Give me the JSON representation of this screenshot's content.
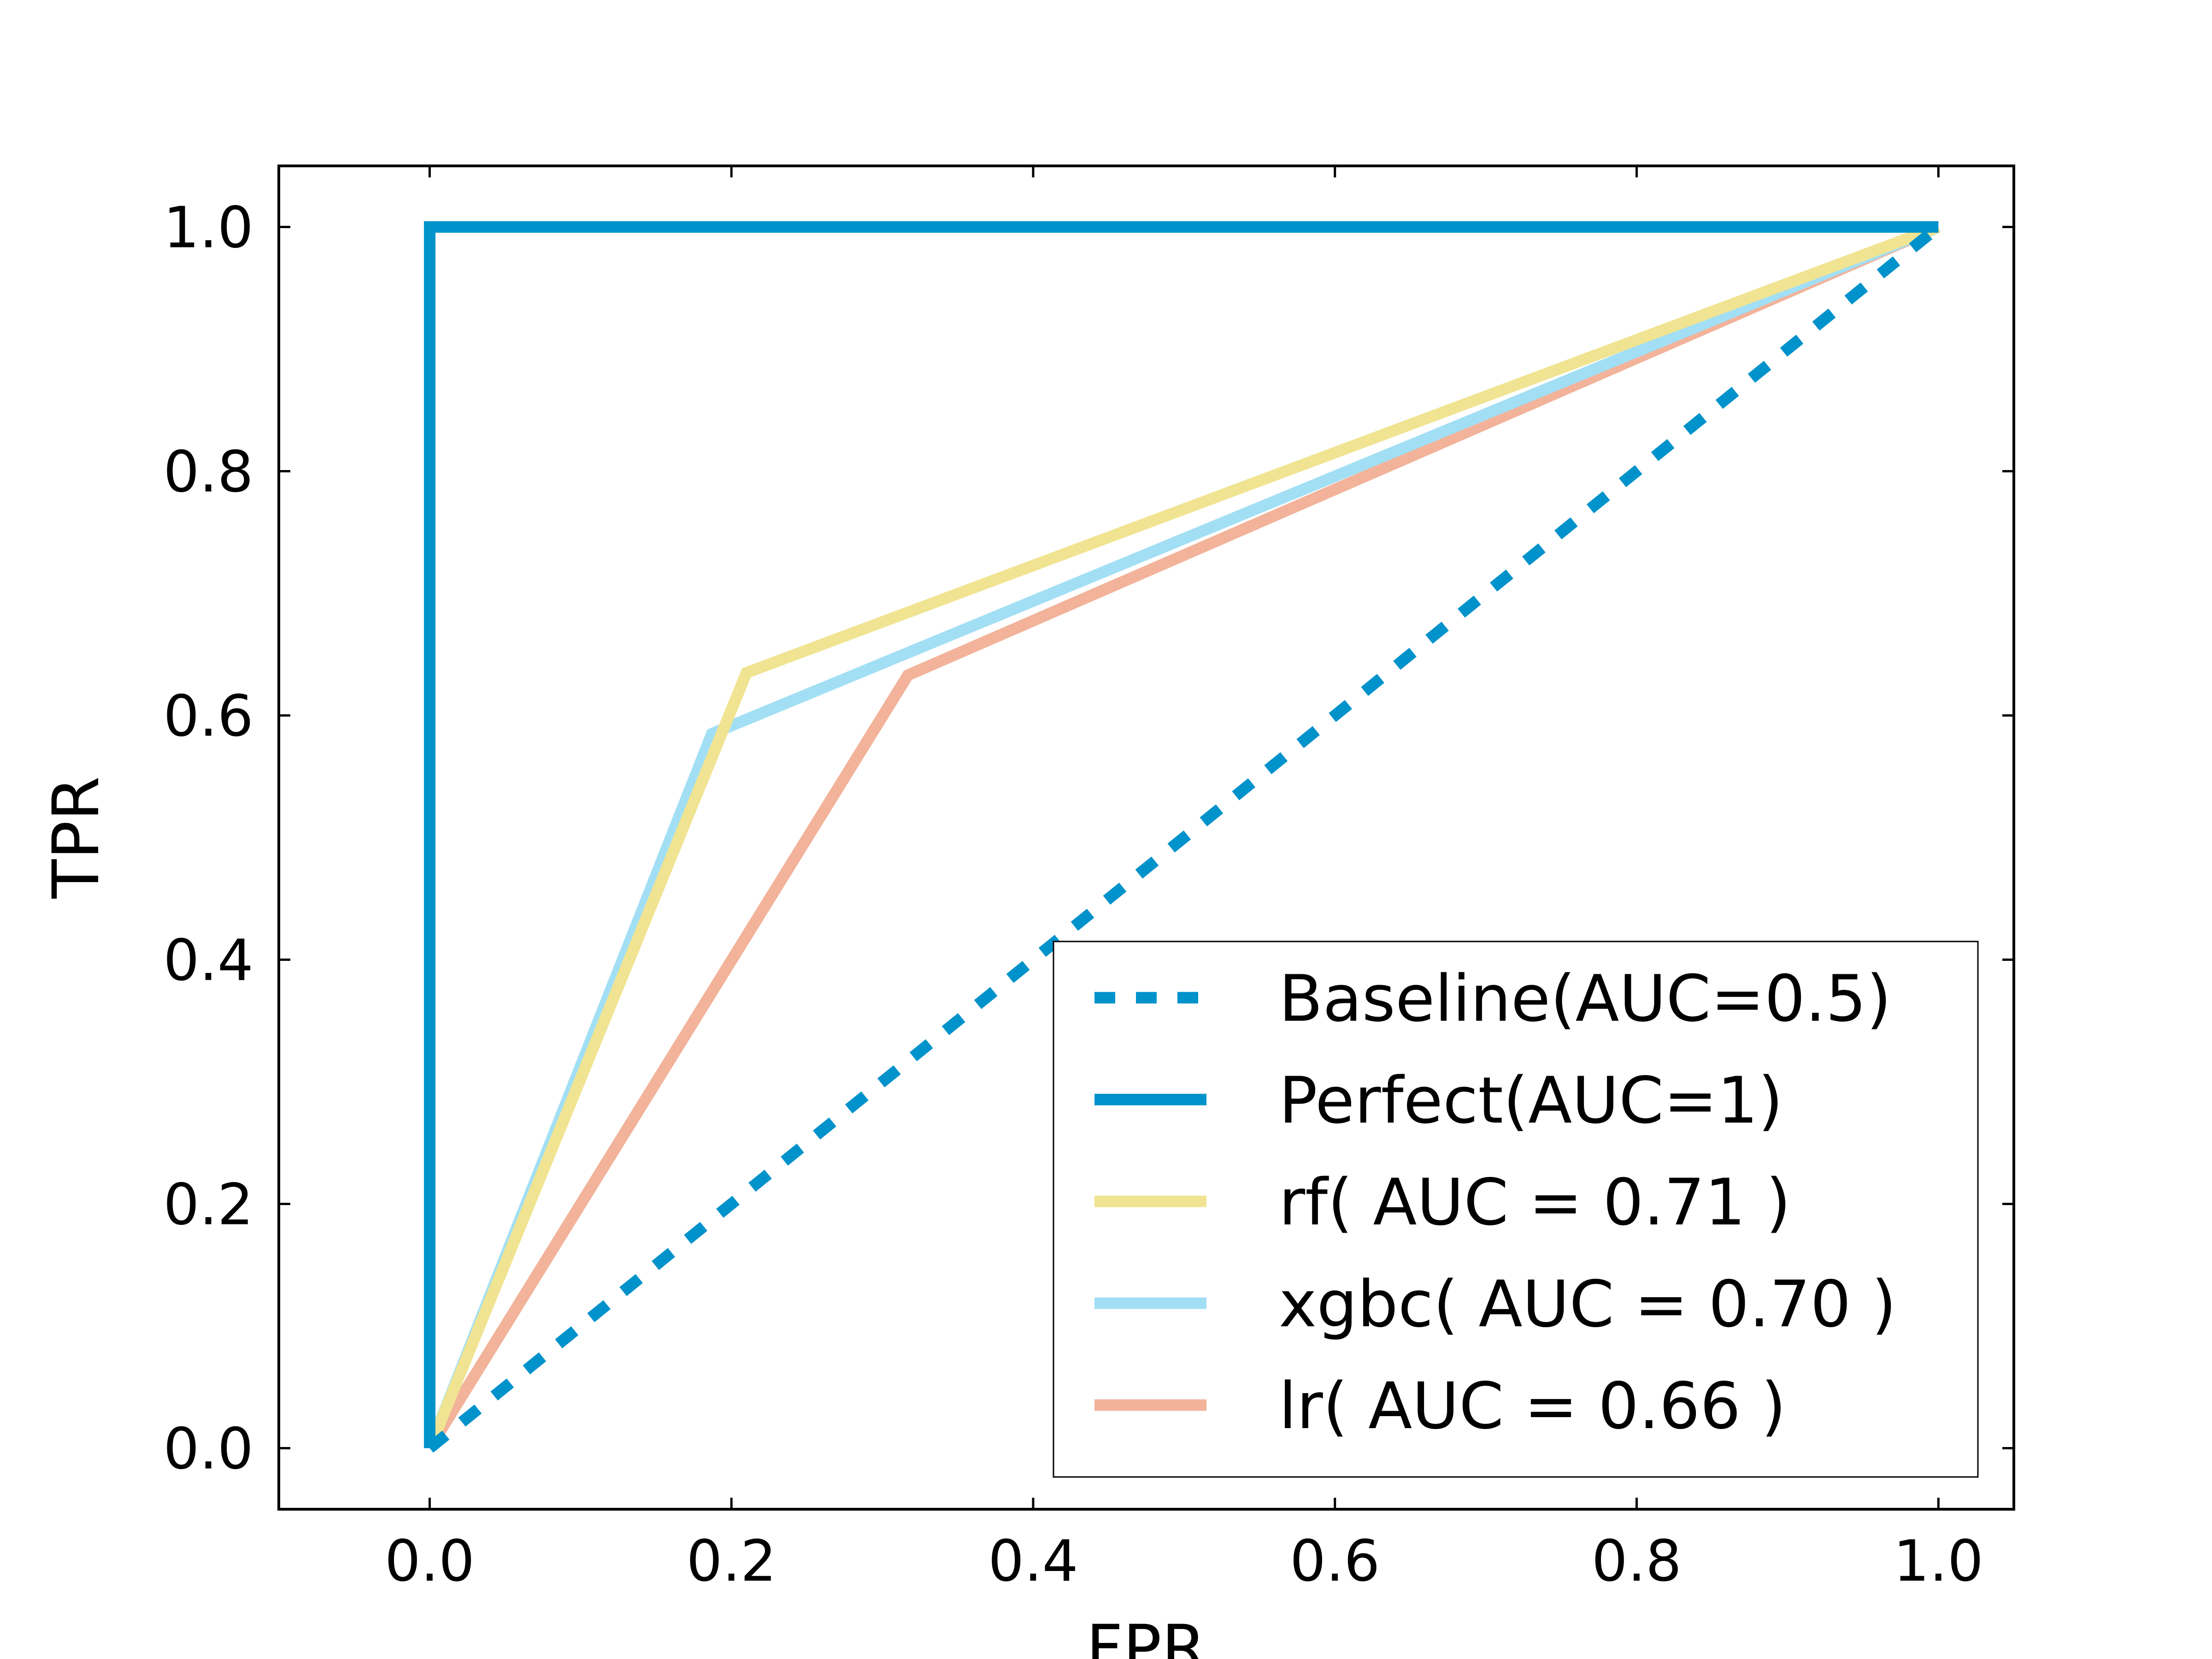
{
  "chart_data": {
    "type": "line",
    "xlabel": "FPR",
    "ylabel": "TPR",
    "xlim": [
      -0.1,
      1.05
    ],
    "ylim": [
      -0.05,
      1.05
    ],
    "xticks": [
      "0.0",
      "0.2",
      "0.4",
      "0.6",
      "0.8",
      "1.0"
    ],
    "yticks": [
      "0.0",
      "0.2",
      "0.4",
      "0.6",
      "0.8",
      "1.0"
    ],
    "grid": false,
    "legend_position": "lower-right",
    "series": [
      {
        "name": "Baseline(AUC=0.5)",
        "color": "#0092cb",
        "style": "dotted",
        "x": [
          0.0,
          1.0
        ],
        "y": [
          0.0,
          1.0
        ]
      },
      {
        "name": "Perfect(AUC=1)",
        "color": "#0092cb",
        "style": "solid",
        "x": [
          0.0,
          0.0,
          1.0
        ],
        "y": [
          0.0,
          1.0,
          1.0
        ]
      },
      {
        "name": "rf( AUC = 0.71 )",
        "color": "#f0e492",
        "style": "solid",
        "x": [
          0.0,
          0.21,
          1.0
        ],
        "y": [
          0.0,
          0.635,
          1.0
        ]
      },
      {
        "name": "xgbc( AUC = 0.70 )",
        "color": "#a2dff5",
        "style": "solid",
        "x": [
          0.0,
          0.187,
          1.0
        ],
        "y": [
          0.0,
          0.585,
          1.0
        ]
      },
      {
        "name": "lr( AUC = 0.66 )",
        "color": "#f2b39a",
        "style": "solid",
        "x": [
          0.0,
          0.317,
          1.0
        ],
        "y": [
          0.0,
          0.633,
          1.0
        ]
      }
    ]
  }
}
